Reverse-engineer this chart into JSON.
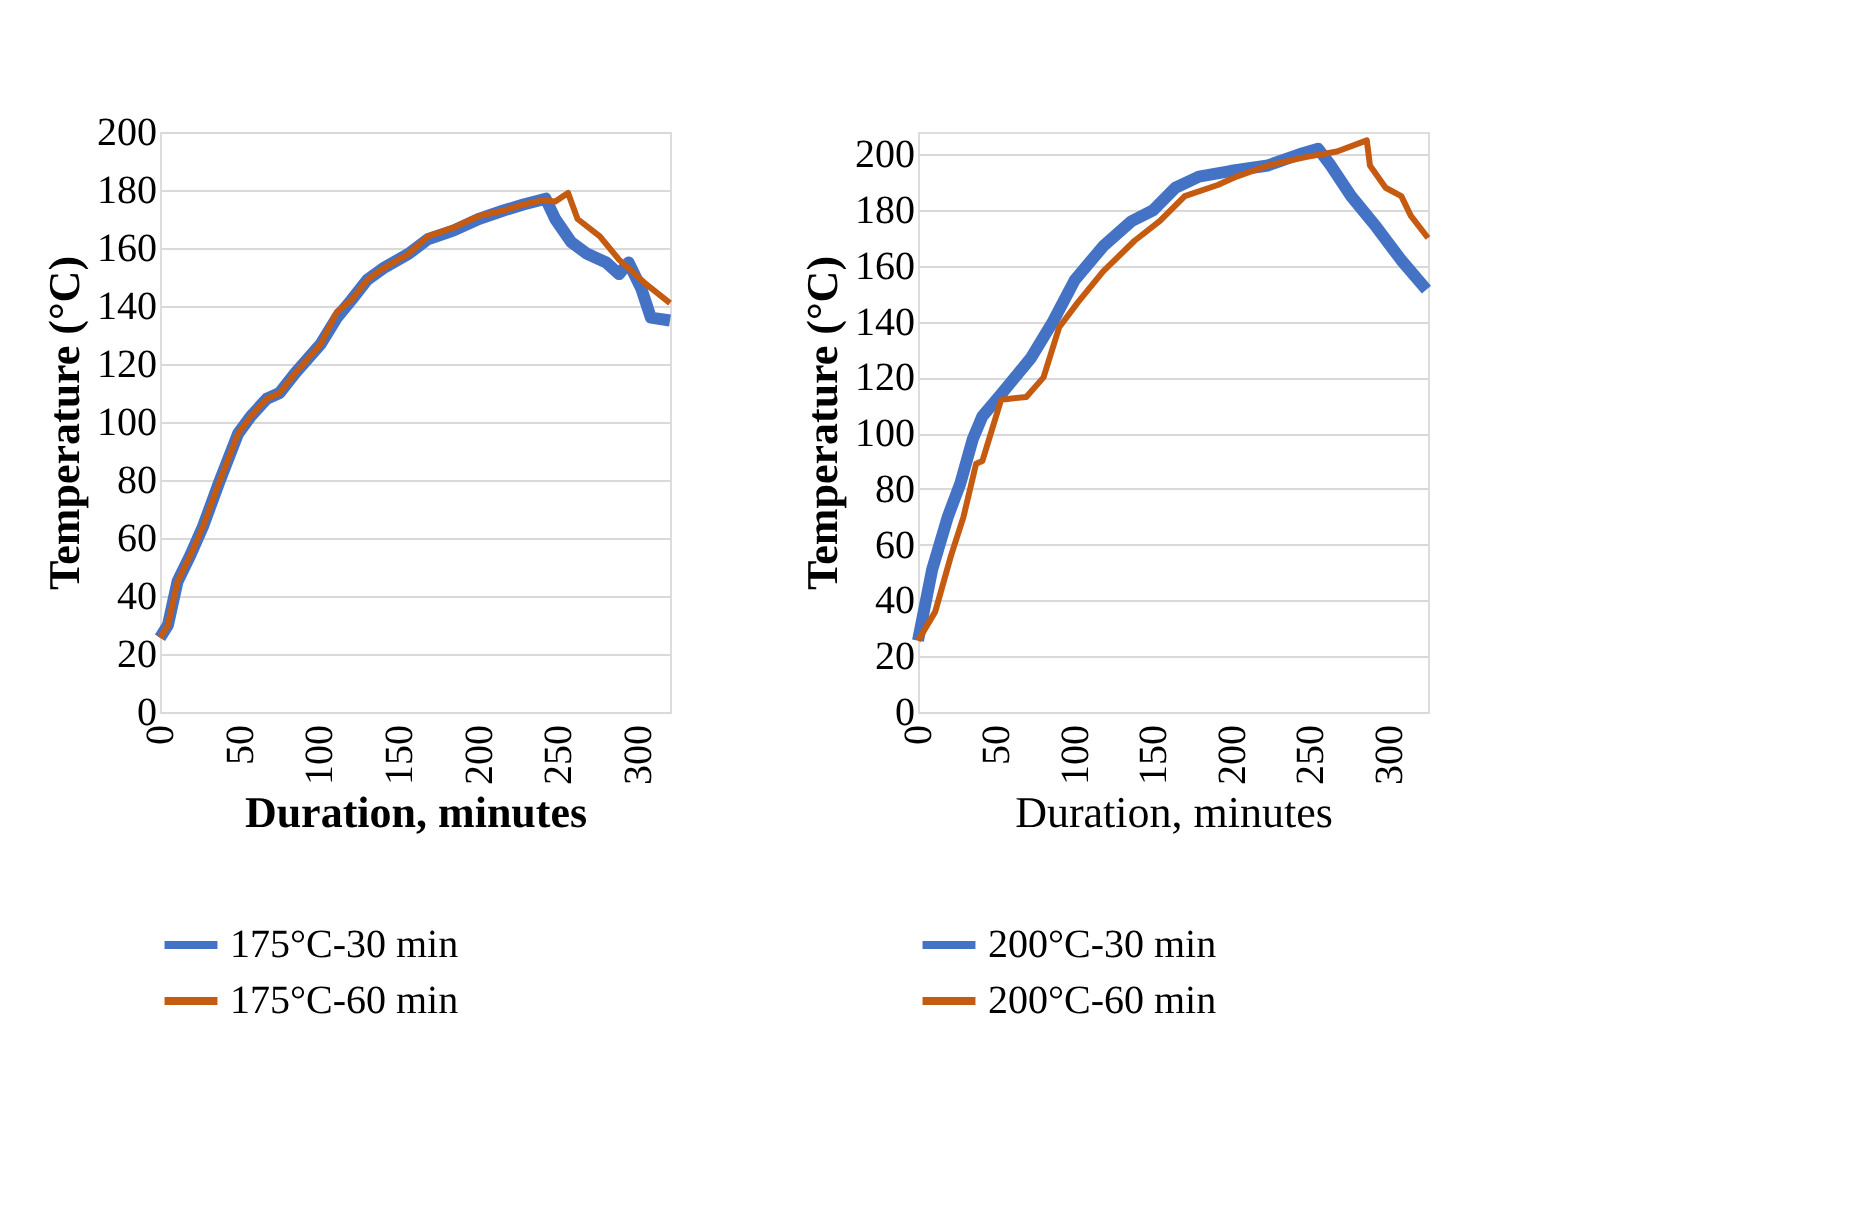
{
  "chart_data": [
    {
      "type": "line",
      "xlabel": "Duration, minutes",
      "ylabel": "Temperature  (°C)",
      "xlim": [
        0,
        320
      ],
      "xticks": [
        0,
        50,
        100,
        150,
        200,
        250,
        300
      ],
      "ylim": [
        0,
        200
      ],
      "yticks": [
        0,
        20,
        40,
        60,
        80,
        100,
        120,
        140,
        160,
        180,
        200
      ],
      "grid": "y",
      "legend": "bottom",
      "line_style": "solid",
      "marker": "none",
      "series": [
        {
          "name": "175°C-30 min",
          "color": "#4472c4",
          "x": [
            0,
            5,
            11,
            19,
            27,
            37,
            49,
            57,
            67,
            75,
            85,
            93,
            101,
            111,
            120,
            130,
            140,
            156,
            168,
            184,
            200,
            216,
            228,
            242,
            248,
            258,
            268,
            280,
            288,
            294,
            302,
            308,
            320
          ],
          "values": [
            25.6,
            30,
            45,
            54,
            64,
            79,
            96,
            102,
            108,
            110,
            117,
            122,
            127,
            136,
            142,
            149,
            153,
            158,
            163,
            166,
            170,
            173,
            175,
            177,
            170,
            162,
            158,
            155,
            151,
            155,
            146,
            136,
            135
          ]
        },
        {
          "name": "175°C-60 min",
          "color": "#c55a11",
          "x": [
            0,
            5,
            11,
            19,
            27,
            37,
            49,
            57,
            67,
            75,
            85,
            93,
            101,
            111,
            120,
            130,
            140,
            156,
            168,
            184,
            200,
            216,
            228,
            240,
            248,
            256,
            262,
            276,
            288,
            304,
            320
          ],
          "values": [
            25.6,
            30,
            45,
            54,
            64,
            79,
            96,
            102,
            108,
            110,
            117,
            122,
            127,
            138,
            142,
            149,
            153,
            158,
            164,
            167,
            171,
            173,
            175,
            176.5,
            176,
            179,
            170,
            164,
            156,
            148,
            141
          ]
        }
      ]
    },
    {
      "type": "line",
      "xlabel": "Duration, minutes",
      "ylabel": "Temperature  (°C)",
      "xlim": [
        0,
        325
      ],
      "xticks": [
        0,
        50,
        100,
        150,
        200,
        250,
        300
      ],
      "ylim": [
        0,
        208
      ],
      "yticks": [
        0,
        20,
        40,
        60,
        80,
        100,
        120,
        140,
        160,
        180,
        200
      ],
      "grid": "y",
      "legend": "bottom",
      "line_style": "solid",
      "marker": "none",
      "series": [
        {
          "name": "200°C-30 min",
          "color": "#4472c4",
          "x": [
            0,
            9,
            19,
            27,
            35,
            41,
            53,
            72,
            86,
            100,
            118,
            136,
            150,
            164,
            179,
            199,
            223,
            243,
            255,
            263,
            276,
            292,
            308,
            324
          ],
          "values": [
            25.6,
            51,
            70,
            82,
            98,
            106,
            114,
            127,
            140,
            155,
            167,
            176,
            180,
            188,
            192,
            194,
            196,
            200,
            202,
            196,
            185,
            174,
            162,
            151.5
          ]
        },
        {
          "name": "200°C-60 min",
          "color": "#c55a11",
          "x": [
            0,
            11,
            21,
            29,
            37,
            41,
            53,
            69,
            80,
            90,
            102,
            118,
            138,
            154,
            170,
            191,
            203,
            223,
            247,
            267,
            286,
            288,
            298,
            308,
            314,
            325
          ],
          "values": [
            25.6,
            36,
            56,
            70,
            89,
            90,
            112,
            113,
            120,
            138,
            147,
            158,
            169,
            176,
            185,
            189,
            192,
            196,
            199,
            201,
            205,
            196,
            188,
            185,
            178,
            170
          ]
        }
      ]
    }
  ]
}
